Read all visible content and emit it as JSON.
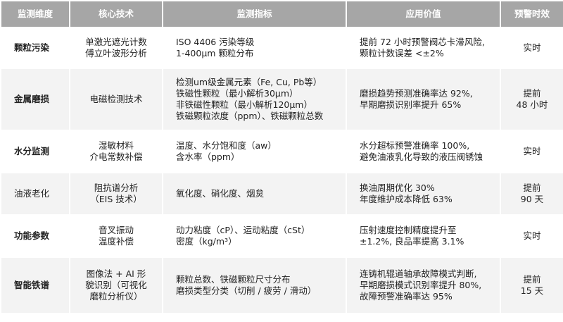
{
  "headers": [
    "监测维度",
    "核心技术",
    "监测指标",
    "应用价值",
    "预警时效"
  ],
  "rows": [
    {
      "dimension": "颗粒污染",
      "bold": true,
      "tech": [
        "单激光遮光计数",
        "傅立叶波形分析"
      ],
      "indicators": [
        "ISO 4406 污染等级",
        " 1-400μm 颗粒分布"
      ],
      "value": [
        "提前 72 小时预警阀芯卡滞风险,",
        "颗粒计数误差 <±2%"
      ],
      "timing": [
        "实时"
      ]
    },
    {
      "dimension": "金属磨损",
      "bold": true,
      "tech": [
        "电磁检测技术"
      ],
      "indicators": [
        "检测um级金属元素（Fe, Cu, Pb等）",
        "铁磁性颗粒（最小解析30μm）",
        "非铁磁性颗粒（最小解析120μm）",
        "铁磁颗粒浓度（ppm）、铁磁颗粒总数"
      ],
      "value": [
        "磨损趋势预测准确率达 92%,",
        "早期磨损识别率提升 65%"
      ],
      "timing": [
        "提前",
        "48 小时"
      ]
    },
    {
      "dimension": "水分监测",
      "bold": true,
      "tech": [
        "湿敏材料",
        "介电常数补偿"
      ],
      "indicators": [
        "温度、水分饱和度（aw）",
        "含水率（ppm）"
      ],
      "value": [
        "水分超标预警准确率 100%,",
        "避免油液乳化导致的液压阀锈蚀"
      ],
      "timing": [
        "实时"
      ]
    },
    {
      "dimension": "油液老化",
      "bold": false,
      "tech": [
        "阻抗谱分析",
        "（EIS 技术）"
      ],
      "indicators": [
        "氧化度、硝化度、烟炱"
      ],
      "value": [
        "换油周期优化 30%",
        "年度维护成本降低 63%"
      ],
      "timing": [
        "提前",
        "90 天"
      ]
    },
    {
      "dimension": "功能参数",
      "bold": true,
      "tech": [
        "音叉振动",
        "温度补偿"
      ],
      "indicators": [
        "动力粘度（cP）、运动粘度（cSt）",
        "密度（kg/m³）"
      ],
      "value": [
        "压射速度控制精度提升至",
        "±1.2%, 良品率提高 3.1%"
      ],
      "timing": [
        "实时"
      ]
    },
    {
      "dimension": "智能铁谱",
      "bold": true,
      "tech": [
        "图像法 + AI 形",
        "貌识别（可视化",
        "磨粒分析仪）"
      ],
      "indicators": [
        "颗粒总数、铁磁颗粒尺寸分布",
        "磨损类型分类（切削 / 疲劳 / 滑动）"
      ],
      "value": [
        "连铸机辊道轴承故障模式判断,",
        "早期磨损模式识别率提升 80%,",
        "故障预警准确率达 95%"
      ],
      "timing": [
        "提前",
        "15 天"
      ]
    }
  ],
  "colors": {
    "header_bg": "#a6a6a6",
    "row_alt_bg": "#f3f3f3",
    "header_text": "#ffffff"
  }
}
